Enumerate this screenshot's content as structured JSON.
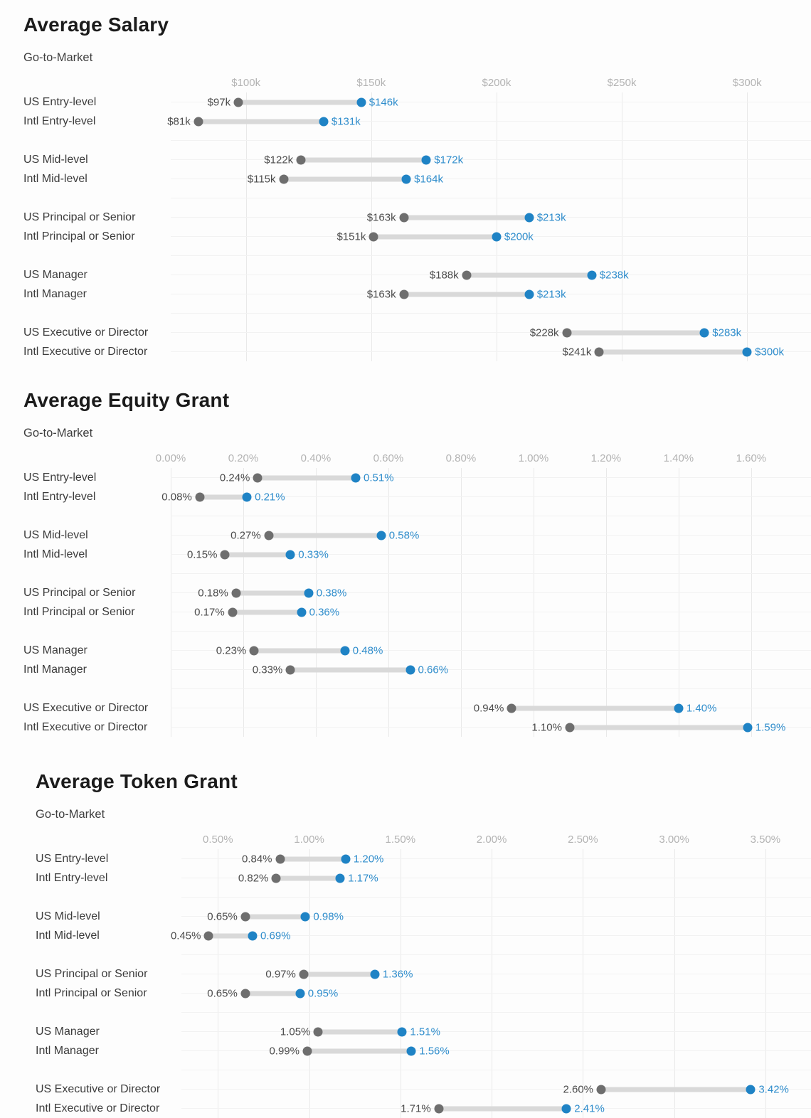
{
  "page": {
    "background": "#fdfdfd"
  },
  "colors": {
    "low_dot": "#6e6e6e",
    "high_dot": "#1f83c5",
    "bar": "#d9d9d9",
    "low_value_text": "#4c4c4c",
    "high_value_text": "#2f8dcc",
    "axis_text": "#b3b3b3",
    "row_label_text": "#3c3c3c",
    "title_text": "#1b1b1b",
    "gridline": "#e9e9e9"
  },
  "chart_data": [
    {
      "type": "range",
      "title": "Average Salary",
      "subtitle": "Go-to-Market",
      "legend_position": "none",
      "grid": true,
      "axis": {
        "min": 70,
        "max": 325.5,
        "ticks": [
          {
            "label": "$100k",
            "value": 100
          },
          {
            "label": "$150k",
            "value": 150
          },
          {
            "label": "$200k",
            "value": 200
          },
          {
            "label": "$250k",
            "value": 250
          },
          {
            "label": "$300k",
            "value": 300
          }
        ]
      },
      "rows": [
        {
          "label": "US Entry-level",
          "low": 97,
          "high": 146,
          "low_label": "$97k",
          "high_label": "$146k"
        },
        {
          "label": "Intl Entry-level",
          "low": 81,
          "high": 131,
          "low_label": "$81k",
          "high_label": "$131k"
        },
        {
          "label": "US Mid-level",
          "low": 122,
          "high": 172,
          "low_label": "$122k",
          "high_label": "$172k"
        },
        {
          "label": "Intl Mid-level",
          "low": 115,
          "high": 164,
          "low_label": "$115k",
          "high_label": "$164k"
        },
        {
          "label": "US Principal or Senior",
          "low": 163,
          "high": 213,
          "low_label": "$163k",
          "high_label": "$213k"
        },
        {
          "label": "Intl Principal or Senior",
          "low": 151,
          "high": 200,
          "low_label": "$151k",
          "high_label": "$200k"
        },
        {
          "label": "US Manager",
          "low": 188,
          "high": 238,
          "low_label": "$188k",
          "high_label": "$238k"
        },
        {
          "label": "Intl Manager",
          "low": 163,
          "high": 213,
          "low_label": "$163k",
          "high_label": "$213k"
        },
        {
          "label": "US Executive or Director",
          "low": 228,
          "high": 283,
          "low_label": "$228k",
          "high_label": "$283k"
        },
        {
          "label": "Intl Executive or Director",
          "low": 241,
          "high": 300,
          "low_label": "$241k",
          "high_label": "$300k"
        }
      ]
    },
    {
      "type": "range",
      "title": "Average Equity Grant",
      "subtitle": "Go-to-Market",
      "legend_position": "none",
      "grid": true,
      "axis": {
        "min": 0,
        "max": 1.765,
        "ticks": [
          {
            "label": "0.00%",
            "value": 0.0
          },
          {
            "label": "0.20%",
            "value": 0.2
          },
          {
            "label": "0.40%",
            "value": 0.4
          },
          {
            "label": "0.60%",
            "value": 0.6
          },
          {
            "label": "0.80%",
            "value": 0.8
          },
          {
            "label": "1.00%",
            "value": 1.0
          },
          {
            "label": "1.20%",
            "value": 1.2
          },
          {
            "label": "1.40%",
            "value": 1.4
          },
          {
            "label": "1.60%",
            "value": 1.6
          }
        ]
      },
      "rows": [
        {
          "label": "US Entry-level",
          "low": 0.24,
          "high": 0.51,
          "low_label": "0.24%",
          "high_label": "0.51%"
        },
        {
          "label": "Intl Entry-level",
          "low": 0.08,
          "high": 0.21,
          "low_label": "0.08%",
          "high_label": "0.21%"
        },
        {
          "label": "US Mid-level",
          "low": 0.27,
          "high": 0.58,
          "low_label": "0.27%",
          "high_label": "0.58%"
        },
        {
          "label": "Intl Mid-level",
          "low": 0.15,
          "high": 0.33,
          "low_label": "0.15%",
          "high_label": "0.33%"
        },
        {
          "label": "US Principal or Senior",
          "low": 0.18,
          "high": 0.38,
          "low_label": "0.18%",
          "high_label": "0.38%"
        },
        {
          "label": "Intl Principal or Senior",
          "low": 0.17,
          "high": 0.36,
          "low_label": "0.17%",
          "high_label": "0.36%"
        },
        {
          "label": "US Manager",
          "low": 0.23,
          "high": 0.48,
          "low_label": "0.23%",
          "high_label": "0.48%"
        },
        {
          "label": "Intl Manager",
          "low": 0.33,
          "high": 0.66,
          "low_label": "0.33%",
          "high_label": "0.66%"
        },
        {
          "label": "US Executive or Director",
          "low": 0.94,
          "high": 1.4,
          "low_label": "0.94%",
          "high_label": "1.40%"
        },
        {
          "label": "Intl Executive or Director",
          "low": 1.1,
          "high": 1.59,
          "low_label": "1.10%",
          "high_label": "1.59%"
        }
      ]
    },
    {
      "type": "range",
      "title": "Average Token Grant",
      "subtitle": "Go-to-Market",
      "legend_position": "none",
      "grid": true,
      "axis": {
        "min": 0.3,
        "max": 3.75,
        "ticks": [
          {
            "label": "0.50%",
            "value": 0.5
          },
          {
            "label": "1.00%",
            "value": 1.0
          },
          {
            "label": "1.50%",
            "value": 1.5
          },
          {
            "label": "2.00%",
            "value": 2.0
          },
          {
            "label": "2.50%",
            "value": 2.5
          },
          {
            "label": "3.00%",
            "value": 3.0
          },
          {
            "label": "3.50%",
            "value": 3.5
          }
        ]
      },
      "rows": [
        {
          "label": "US Entry-level",
          "low": 0.84,
          "high": 1.2,
          "low_label": "0.84%",
          "high_label": "1.20%"
        },
        {
          "label": "Intl Entry-level",
          "low": 0.82,
          "high": 1.17,
          "low_label": "0.82%",
          "high_label": "1.17%"
        },
        {
          "label": "US Mid-level",
          "low": 0.65,
          "high": 0.98,
          "low_label": "0.65%",
          "high_label": "0.98%"
        },
        {
          "label": "Intl Mid-level",
          "low": 0.45,
          "high": 0.69,
          "low_label": "0.45%",
          "high_label": "0.69%"
        },
        {
          "label": "US Principal or Senior",
          "low": 0.97,
          "high": 1.36,
          "low_label": "0.97%",
          "high_label": "1.36%"
        },
        {
          "label": "Intl Principal or Senior",
          "low": 0.65,
          "high": 0.95,
          "low_label": "0.65%",
          "high_label": "0.95%"
        },
        {
          "label": "US Manager",
          "low": 1.05,
          "high": 1.51,
          "low_label": "1.05%",
          "high_label": "1.51%"
        },
        {
          "label": "Intl Manager",
          "low": 0.99,
          "high": 1.56,
          "low_label": "0.99%",
          "high_label": "1.56%"
        },
        {
          "label": "US Executive or Director",
          "low": 2.6,
          "high": 3.42,
          "low_label": "2.60%",
          "high_label": "3.42%"
        },
        {
          "label": "Intl Executive or Director",
          "low": 1.71,
          "high": 2.41,
          "low_label": "1.71%",
          "high_label": "2.41%"
        }
      ]
    }
  ]
}
